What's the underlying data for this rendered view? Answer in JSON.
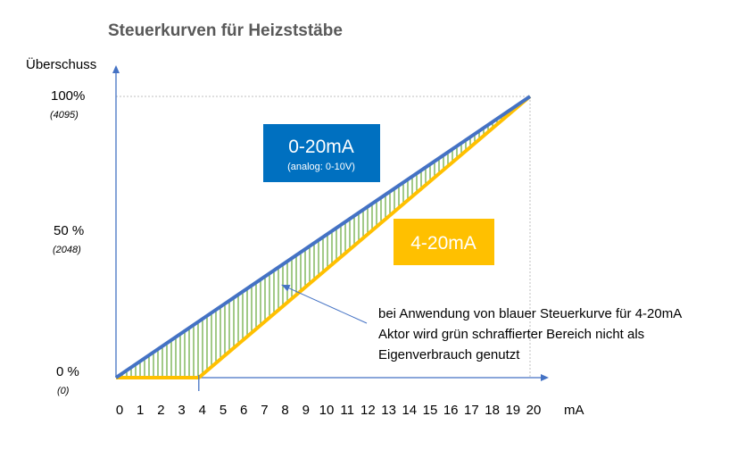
{
  "chart_data": {
    "type": "line",
    "title": "Steuerkurven für Heizststäbe",
    "ylabel": "Überschuss",
    "xlabel": "mA",
    "xlim": [
      0,
      20
    ],
    "ylim": [
      0,
      100
    ],
    "x_ticks": [
      "0",
      "1",
      "2",
      "3",
      "4",
      "5",
      "6",
      "7",
      "8",
      "9",
      "10",
      "11",
      "12",
      "13",
      "14",
      "15",
      "16",
      "17",
      "18",
      "19",
      "20"
    ],
    "y_ticks": [
      {
        "value": 0,
        "label": "0 %",
        "sublabel": "(0)"
      },
      {
        "value": 50,
        "label": "50 %",
        "sublabel": "(2048)"
      },
      {
        "value": 100,
        "label": "100%",
        "sublabel": "(4095)"
      }
    ],
    "series": [
      {
        "name": "0-20mA",
        "subtitle": "(analog: 0-10V)",
        "color": "#4472C4",
        "box_color": "#0070C0",
        "x": [
          0,
          20
        ],
        "y": [
          0,
          100
        ]
      },
      {
        "name": "4-20mA",
        "color": "#FFC000",
        "box_color": "#FFC000",
        "x": [
          0,
          4,
          20
        ],
        "y": [
          0,
          0,
          100
        ]
      }
    ],
    "hatch_color": "#70AD47",
    "annotation": {
      "lines": [
        "bei Anwendung von blauer Steuerkurve für 4-20mA",
        "Aktor wird grün schraffierter Bereich nicht als",
        "Eigenverbrauch genutzt"
      ],
      "pointer_to": {
        "x": 8,
        "y": 33
      }
    }
  }
}
